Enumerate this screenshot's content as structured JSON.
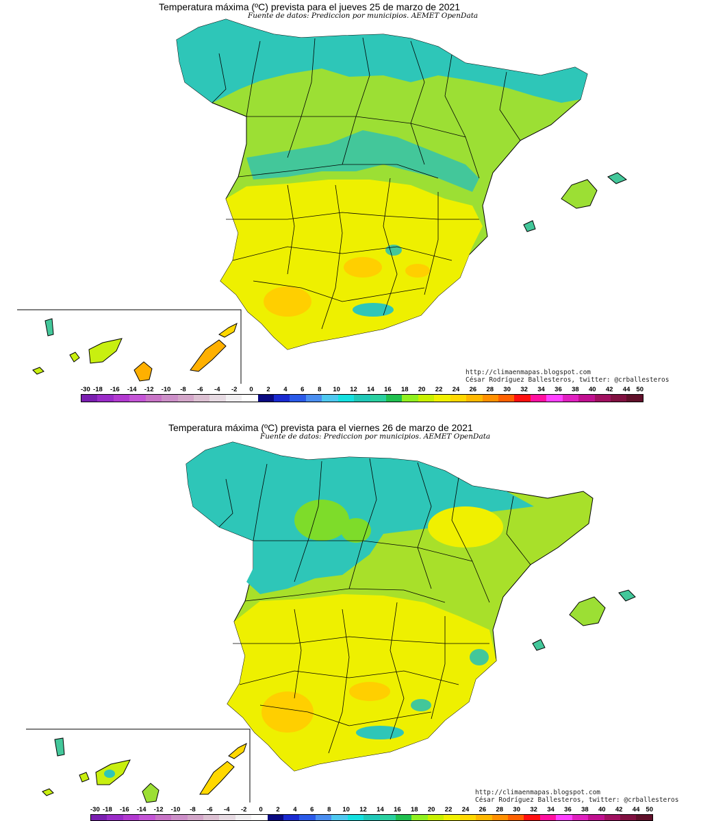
{
  "maps": [
    {
      "title": "Temperatura máxima (ºC) prevista para el jueves 25 de marzo de 2021",
      "subtitle": "Fuente de datos: Prediccion por municipios. AEMET OpenData",
      "credit_url": "http://climaenmapas.blogspot.com",
      "credit_author": "César Rodríguez Ballesteros, twitter: @crballesteros"
    },
    {
      "title": "Temperatura máxima (ºC) prevista para el viernes 26 de marzo de 2021",
      "subtitle": "Fuente de datos: Prediccion por municipios. AEMET OpenData",
      "credit_url": "http://climaenmapas.blogspot.com",
      "credit_author": "César Rodríguez Ballesteros, twitter: @crballesteros"
    }
  ],
  "legend": {
    "labels": [
      "-30",
      "-18",
      "-16",
      "-14",
      "-12",
      "-10",
      "-8",
      "-6",
      "-4",
      "-2",
      "0",
      "2",
      "4",
      "6",
      "8",
      "10",
      "12",
      "14",
      "16",
      "18",
      "20",
      "22",
      "24",
      "26",
      "28",
      "30",
      "32",
      "34",
      "36",
      "38",
      "40",
      "42",
      "44",
      "50"
    ],
    "colors": [
      "#7a1fb0",
      "#9a2cc8",
      "#b23ad0",
      "#c455d6",
      "#c874c6",
      "#cc8fc8",
      "#d3a6c9",
      "#dcc0d2",
      "#e6dae2",
      "#f2f0f2",
      "#ffffff",
      "#0a0a80",
      "#1a2ad0",
      "#2a5ae8",
      "#4a8ef0",
      "#4ec8f0",
      "#14e0e0",
      "#20c8b8",
      "#2ad0a0",
      "#20c050",
      "#90f020",
      "#c8f000",
      "#f0f000",
      "#ffd800",
      "#ffb800",
      "#ff9000",
      "#ff6000",
      "#ff1010",
      "#ff10a0",
      "#ff40ff",
      "#e020c0",
      "#c01090",
      "#a01060",
      "#801040",
      "#60102a"
    ]
  },
  "colors": {
    "teal": "#2ec6b8",
    "green": "#7edc2a",
    "yellowgreen": "#c8ef10",
    "yellow": "#f6f000",
    "orange": "#ffc800",
    "border": "#000000"
  }
}
